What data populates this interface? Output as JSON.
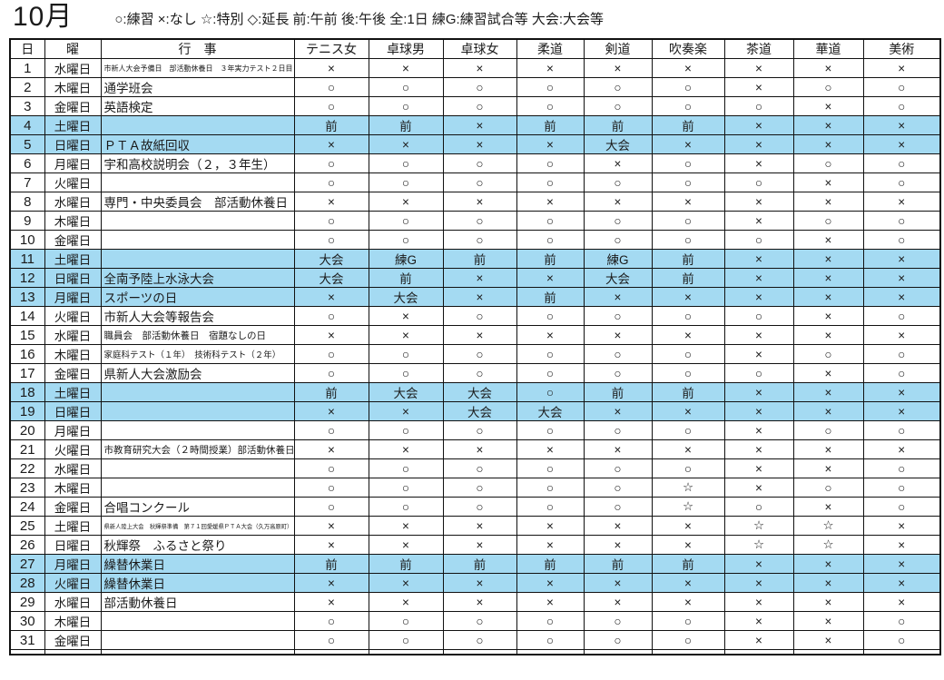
{
  "page": {
    "title": "10月",
    "legend": "○:練習 ×:なし ☆:特別 ◇:延長 前:午前 後:午後 全:1日 練G:練習試合等 大会:大会等"
  },
  "colors": {
    "highlight_row": "#a4daf2",
    "grid_line": "#111111",
    "text": "#1a1a1a"
  },
  "table": {
    "headers": [
      "日",
      "曜",
      "行　事",
      "テニス女",
      "卓球男",
      "卓球女",
      "柔道",
      "剣道",
      "吹奏楽",
      "茶道",
      "華道",
      "美術"
    ],
    "rows": [
      {
        "day": "1",
        "weekday": "水曜日",
        "event": "市新人大会予備日　部活動休養日　３年実力テスト２日目",
        "size": "xs",
        "hl": false,
        "cells": [
          "×",
          "×",
          "×",
          "×",
          "×",
          "×",
          "×",
          "×",
          "×"
        ]
      },
      {
        "day": "2",
        "weekday": "木曜日",
        "event": "通学班会",
        "size": "n",
        "hl": false,
        "cells": [
          "○",
          "○",
          "○",
          "○",
          "○",
          "○",
          "×",
          "○",
          "○"
        ]
      },
      {
        "day": "3",
        "weekday": "金曜日",
        "event": "英語検定",
        "size": "n",
        "hl": false,
        "cells": [
          "○",
          "○",
          "○",
          "○",
          "○",
          "○",
          "○",
          "×",
          "○"
        ]
      },
      {
        "day": "4",
        "weekday": "土曜日",
        "event": "",
        "size": "n",
        "hl": true,
        "cells": [
          "前",
          "前",
          "×",
          "前",
          "前",
          "前",
          "×",
          "×",
          "×"
        ]
      },
      {
        "day": "5",
        "weekday": "日曜日",
        "event": "ＰＴＡ故紙回収",
        "size": "n",
        "hl": true,
        "cells": [
          "×",
          "×",
          "×",
          "×",
          "大会",
          "×",
          "×",
          "×",
          "×"
        ]
      },
      {
        "day": "6",
        "weekday": "月曜日",
        "event": "宇和高校説明会（２，３年生）",
        "size": "n",
        "hl": false,
        "cells": [
          "○",
          "○",
          "○",
          "○",
          "×",
          "○",
          "×",
          "○",
          "○"
        ]
      },
      {
        "day": "7",
        "weekday": "火曜日",
        "event": "",
        "size": "n",
        "hl": false,
        "cells": [
          "○",
          "○",
          "○",
          "○",
          "○",
          "○",
          "○",
          "×",
          "○"
        ]
      },
      {
        "day": "8",
        "weekday": "水曜日",
        "event": "専門・中央委員会　部活動休養日",
        "size": "n",
        "hl": false,
        "cells": [
          "×",
          "×",
          "×",
          "×",
          "×",
          "×",
          "×",
          "×",
          "×"
        ]
      },
      {
        "day": "9",
        "weekday": "木曜日",
        "event": "",
        "size": "n",
        "hl": false,
        "cells": [
          "○",
          "○",
          "○",
          "○",
          "○",
          "○",
          "×",
          "○",
          "○"
        ]
      },
      {
        "day": "10",
        "weekday": "金曜日",
        "event": "",
        "size": "n",
        "hl": false,
        "cells": [
          "○",
          "○",
          "○",
          "○",
          "○",
          "○",
          "○",
          "×",
          "○"
        ]
      },
      {
        "day": "11",
        "weekday": "土曜日",
        "event": "",
        "size": "n",
        "hl": true,
        "cells": [
          "大会",
          "練G",
          "前",
          "前",
          "練G",
          "前",
          "×",
          "×",
          "×"
        ]
      },
      {
        "day": "12",
        "weekday": "日曜日",
        "event": "全南予陸上水泳大会",
        "size": "n",
        "hl": true,
        "cells": [
          "大会",
          "前",
          "×",
          "×",
          "大会",
          "前",
          "×",
          "×",
          "×"
        ]
      },
      {
        "day": "13",
        "weekday": "月曜日",
        "event": "スポーツの日",
        "size": "n",
        "hl": true,
        "cells": [
          "×",
          "大会",
          "×",
          "前",
          "×",
          "×",
          "×",
          "×",
          "×"
        ]
      },
      {
        "day": "14",
        "weekday": "火曜日",
        "event": "市新人大会等報告会",
        "size": "n",
        "hl": false,
        "cells": [
          "○",
          "×",
          "○",
          "○",
          "○",
          "○",
          "○",
          "×",
          "○"
        ]
      },
      {
        "day": "15",
        "weekday": "水曜日",
        "event": "職員会　部活動休養日　宿題なしの日",
        "size": "md",
        "hl": false,
        "cells": [
          "×",
          "×",
          "×",
          "×",
          "×",
          "×",
          "×",
          "×",
          "×"
        ]
      },
      {
        "day": "16",
        "weekday": "木曜日",
        "event": "家庭科テスト（１年）　技術科テスト（２年）",
        "size": "sm",
        "hl": false,
        "cells": [
          "○",
          "○",
          "○",
          "○",
          "○",
          "○",
          "×",
          "○",
          "○"
        ]
      },
      {
        "day": "17",
        "weekday": "金曜日",
        "event": "県新人大会激励会",
        "size": "n",
        "hl": false,
        "cells": [
          "○",
          "○",
          "○",
          "○",
          "○",
          "○",
          "○",
          "×",
          "○"
        ]
      },
      {
        "day": "18",
        "weekday": "土曜日",
        "event": "",
        "size": "n",
        "hl": true,
        "cells": [
          "前",
          "大会",
          "大会",
          "○",
          "前",
          "前",
          "×",
          "×",
          "×"
        ]
      },
      {
        "day": "19",
        "weekday": "日曜日",
        "event": "",
        "size": "n",
        "hl": true,
        "cells": [
          "×",
          "×",
          "大会",
          "大会",
          "×",
          "×",
          "×",
          "×",
          "×"
        ]
      },
      {
        "day": "20",
        "weekday": "月曜日",
        "event": "",
        "size": "n",
        "hl": false,
        "cells": [
          "○",
          "○",
          "○",
          "○",
          "○",
          "○",
          "×",
          "○",
          "○"
        ]
      },
      {
        "day": "21",
        "weekday": "火曜日",
        "event": "市教育研究大会（２時間授業）部活動休養日",
        "size": "md",
        "hl": false,
        "cells": [
          "×",
          "×",
          "×",
          "×",
          "×",
          "×",
          "×",
          "×",
          "×"
        ]
      },
      {
        "day": "22",
        "weekday": "水曜日",
        "event": "",
        "size": "n",
        "hl": false,
        "cells": [
          "○",
          "○",
          "○",
          "○",
          "○",
          "○",
          "×",
          "×",
          "○"
        ]
      },
      {
        "day": "23",
        "weekday": "木曜日",
        "event": "",
        "size": "n",
        "hl": false,
        "cells": [
          "○",
          "○",
          "○",
          "○",
          "○",
          "☆",
          "×",
          "○",
          "○"
        ]
      },
      {
        "day": "24",
        "weekday": "金曜日",
        "event": "合唱コンクール",
        "size": "n",
        "hl": false,
        "cells": [
          "○",
          "○",
          "○",
          "○",
          "○",
          "☆",
          "○",
          "×",
          "○"
        ]
      },
      {
        "day": "25",
        "weekday": "土曜日",
        "event": "県新人陸上大会　秋輝祭準備　第７１回愛媛県ＰＴＡ大会（久万高原町）",
        "size": "xxs",
        "hl": false,
        "cells": [
          "×",
          "×",
          "×",
          "×",
          "×",
          "×",
          "☆",
          "☆",
          "×"
        ]
      },
      {
        "day": "26",
        "weekday": "日曜日",
        "event": "秋輝祭　ふるさと祭り",
        "size": "n",
        "hl": false,
        "cells": [
          "×",
          "×",
          "×",
          "×",
          "×",
          "×",
          "☆",
          "☆",
          "×"
        ]
      },
      {
        "day": "27",
        "weekday": "月曜日",
        "event": "繰替休業日",
        "size": "n",
        "hl": true,
        "cells": [
          "前",
          "前",
          "前",
          "前",
          "前",
          "前",
          "×",
          "×",
          "×"
        ]
      },
      {
        "day": "28",
        "weekday": "火曜日",
        "event": "繰替休業日",
        "size": "n",
        "hl": true,
        "cells": [
          "×",
          "×",
          "×",
          "×",
          "×",
          "×",
          "×",
          "×",
          "×"
        ]
      },
      {
        "day": "29",
        "weekday": "水曜日",
        "event": "部活動休養日",
        "size": "n",
        "hl": false,
        "cells": [
          "×",
          "×",
          "×",
          "×",
          "×",
          "×",
          "×",
          "×",
          "×"
        ]
      },
      {
        "day": "30",
        "weekday": "木曜日",
        "event": "",
        "size": "n",
        "hl": false,
        "cells": [
          "○",
          "○",
          "○",
          "○",
          "○",
          "○",
          "×",
          "×",
          "○"
        ]
      },
      {
        "day": "31",
        "weekday": "金曜日",
        "event": "",
        "size": "n",
        "hl": false,
        "cells": [
          "○",
          "○",
          "○",
          "○",
          "○",
          "○",
          "×",
          "×",
          "○"
        ]
      }
    ]
  }
}
